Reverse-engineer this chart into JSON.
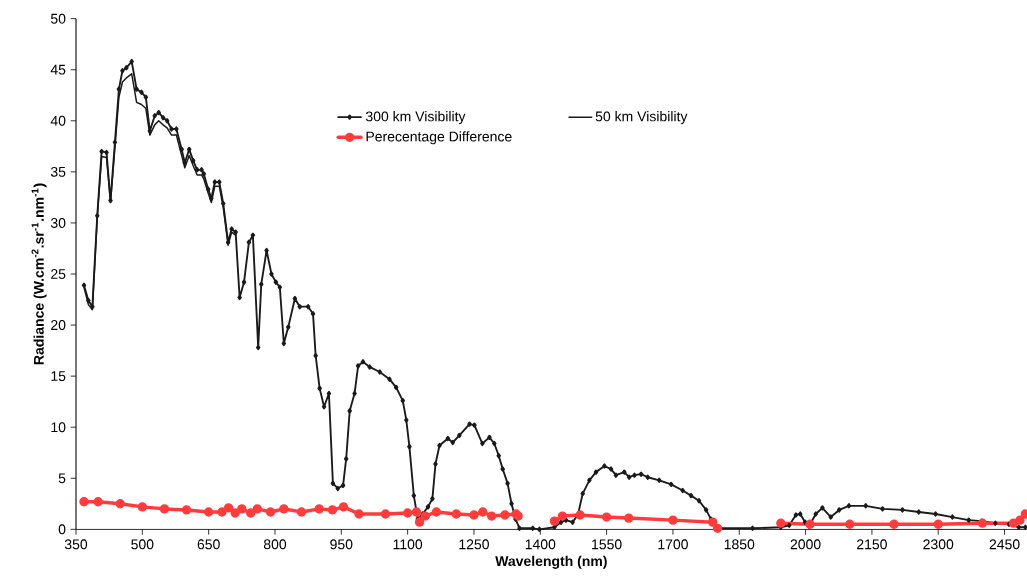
{
  "chart_data": {
    "type": "line",
    "xlabel": "Wavelength (nm)",
    "ylabel": "Radiance (W.cm$^{-2}$.sr$^{-1}$.nm$^{-1}$)",
    "xlim": [
      350,
      2500
    ],
    "ylim": [
      0,
      50
    ],
    "xticks": [
      350,
      500,
      650,
      800,
      950,
      1100,
      1250,
      1400,
      1550,
      1700,
      1850,
      2000,
      2150,
      2300,
      2450
    ],
    "yticks": [
      0,
      5,
      10,
      15,
      20,
      25,
      30,
      35,
      40,
      45,
      50
    ],
    "grid": false,
    "legend": "top",
    "line_style": "solid",
    "series": [
      {
        "name": "300 km Visibility",
        "color": "#1a1a1a",
        "marker": "diamond",
        "x": [
          368,
          378,
          387,
          398,
          408,
          419,
          428,
          438,
          447,
          455,
          464,
          476,
          487,
          498,
          508,
          517,
          528,
          537,
          547,
          556,
          566,
          577,
          589,
          596,
          606,
          615,
          624,
          634,
          639,
          649,
          656,
          664,
          674,
          683,
          694,
          702,
          711,
          720,
          730,
          741,
          750,
          762,
          769,
          781,
          792,
          802,
          811,
          820,
          830,
          845,
          856,
          875,
          886,
          892,
          901,
          911,
          922,
          931,
          942,
          954,
          961,
          969,
          980,
          988,
          999,
          1014,
          1037,
          1059,
          1074,
          1089,
          1097,
          1104,
          1114,
          1123,
          1134,
          1146,
          1156,
          1163,
          1172,
          1191,
          1202,
          1217,
          1240,
          1251,
          1269,
          1285,
          1296,
          1306,
          1315,
          1326,
          1335,
          1344,
          1353,
          1383,
          1398,
          1432,
          1447,
          1458,
          1473,
          1485,
          1496,
          1511,
          1526,
          1545,
          1560,
          1571,
          1590,
          1601,
          1613,
          1628,
          1643,
          1669,
          1696,
          1722,
          1741,
          1759,
          1775,
          1786,
          1801,
          1880,
          1944,
          1963,
          1978,
          1988,
          1999,
          2008,
          2023,
          2038,
          2057,
          2076,
          2098,
          2136,
          2174,
          2219,
          2256,
          2294,
          2332,
          2369,
          2399,
          2429,
          2460,
          2482,
          2497
        ],
        "values": [
          23.9,
          22.4,
          21.8,
          30.7,
          37.0,
          36.9,
          32.2,
          37.9,
          43.1,
          44.9,
          45.2,
          45.8,
          43.1,
          42.8,
          42.3,
          39.0,
          40.5,
          40.8,
          40.3,
          40.0,
          39.2,
          39.2,
          37.2,
          35.9,
          37.2,
          36.1,
          35.2,
          35.2,
          34.8,
          33.3,
          32.4,
          34.0,
          34.0,
          31.9,
          28.1,
          29.4,
          29.1,
          22.7,
          24.2,
          28.1,
          28.8,
          17.8,
          24.0,
          27.3,
          25.0,
          24.2,
          23.7,
          18.2,
          19.8,
          22.6,
          21.8,
          21.8,
          21.1,
          17.0,
          13.8,
          12.0,
          13.3,
          4.5,
          4.0,
          4.3,
          6.9,
          11.6,
          13.3,
          16.0,
          16.4,
          15.9,
          15.4,
          14.7,
          13.9,
          12.6,
          10.7,
          8.1,
          3.3,
          1.0,
          1.5,
          2.2,
          3.0,
          6.4,
          8.2,
          8.9,
          8.5,
          9.2,
          10.3,
          10.2,
          8.4,
          9.0,
          8.4,
          7.2,
          5.9,
          4.5,
          2.5,
          1.0,
          0.1,
          0.1,
          0.0,
          0.2,
          0.7,
          0.9,
          0.7,
          1.4,
          3.5,
          4.8,
          5.6,
          6.2,
          5.9,
          5.3,
          5.6,
          5.1,
          5.3,
          5.4,
          5.1,
          4.8,
          4.4,
          3.8,
          3.3,
          2.8,
          1.9,
          1.0,
          0.1,
          0.1,
          0.2,
          0.4,
          1.4,
          1.5,
          0.7,
          0.3,
          1.5,
          2.1,
          1.2,
          1.9,
          2.3,
          2.3,
          2.0,
          1.9,
          1.7,
          1.5,
          1.2,
          0.9,
          0.8,
          0.6,
          0.5,
          0.2,
          0.2
        ]
      },
      {
        "name": "50 km Visibility",
        "color": "#1a1a1a",
        "marker": "none",
        "x": [
          368,
          378,
          387,
          398,
          408,
          419,
          428,
          438,
          447,
          455,
          464,
          476,
          487,
          498,
          508,
          517,
          528,
          537,
          547,
          556,
          566,
          577,
          589,
          596,
          606,
          615,
          624,
          634,
          639,
          649,
          656,
          664,
          674,
          683,
          694,
          702,
          711
        ],
        "values": [
          23.7,
          22.0,
          21.5,
          30.5,
          36.5,
          36.4,
          32.0,
          37.4,
          42.3,
          43.8,
          44.2,
          44.6,
          41.8,
          41.6,
          41.2,
          38.6,
          39.6,
          40.0,
          39.6,
          39.3,
          38.6,
          38.6,
          36.6,
          35.4,
          36.6,
          35.6,
          34.7,
          34.7,
          34.3,
          32.9,
          32.0,
          33.6,
          33.6,
          31.5,
          27.8,
          29.1,
          28.8
        ]
      },
      {
        "name": "Perecentage Difference",
        "color": "#ff3b3b",
        "marker": "circle",
        "x": [
          368,
          400,
          450,
          500,
          550,
          600,
          650,
          680,
          695,
          710,
          725,
          745,
          760,
          790,
          820,
          860,
          900,
          930,
          955,
          990,
          1050,
          1100,
          1120,
          1127,
          1140,
          1165,
          1210,
          1250,
          1270,
          1290,
          1320,
          1345,
          1350,
          1390,
          1432,
          1450,
          1490,
          1550,
          1600,
          1700,
          1790,
          1801,
          1870,
          1944,
          2010,
          2100,
          2200,
          2300,
          2400,
          2470,
          2485,
          2497
        ],
        "values": [
          2.7,
          2.7,
          2.5,
          2.2,
          2.0,
          1.9,
          1.7,
          1.7,
          2.1,
          1.6,
          2.0,
          1.6,
          2.0,
          1.7,
          2.0,
          1.7,
          2.0,
          1.9,
          2.2,
          1.5,
          1.5,
          1.6,
          1.7,
          0.7,
          1.3,
          1.7,
          1.5,
          1.4,
          1.7,
          1.3,
          1.4,
          1.5,
          1.3,
          null,
          0.8,
          1.3,
          1.4,
          1.2,
          1.1,
          0.9,
          0.7,
          0.1,
          null,
          0.6,
          0.5,
          0.5,
          0.5,
          0.5,
          0.6,
          0.6,
          0.9,
          1.5
        ]
      }
    ]
  }
}
